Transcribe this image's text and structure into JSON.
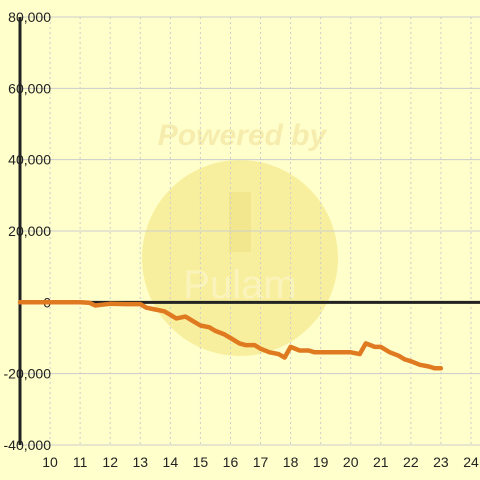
{
  "chart_data": {
    "type": "line",
    "title": "",
    "xlabel": "",
    "ylabel": "",
    "xlim": [
      9,
      24.3
    ],
    "ylim": [
      -40000,
      80000
    ],
    "x_ticks": [
      10,
      11,
      12,
      13,
      14,
      15,
      16,
      17,
      18,
      19,
      20,
      21,
      22,
      23,
      24
    ],
    "y_ticks": [
      {
        "value": 80000,
        "label": "80,000"
      },
      {
        "value": 60000,
        "label": "60,000"
      },
      {
        "value": 40000,
        "label": "40,000"
      },
      {
        "value": 20000,
        "label": "20,000"
      },
      {
        "value": 0,
        "label": "0"
      },
      {
        "value": -20000,
        "label": "-20,000"
      },
      {
        "value": -40000,
        "label": "-40,000"
      }
    ],
    "grid": true,
    "watermark": {
      "line1": "Powered by",
      "line2": "Pulam",
      "color": "#e8d890"
    },
    "colors": {
      "background": "#ffffcc",
      "line": "#e07a20",
      "axis": "#222222",
      "grid": "#cccccc"
    },
    "series": [
      {
        "name": "",
        "x": [
          9.0,
          10.0,
          11.0,
          11.3,
          11.5,
          11.7,
          12.0,
          12.5,
          13.0,
          13.2,
          13.5,
          13.8,
          14.0,
          14.2,
          14.5,
          14.8,
          15.0,
          15.3,
          15.5,
          15.8,
          16.0,
          16.3,
          16.5,
          16.8,
          17.0,
          17.3,
          17.6,
          17.8,
          18.0,
          18.3,
          18.6,
          18.8,
          19.0,
          19.5,
          20.0,
          20.3,
          20.5,
          20.8,
          21.0,
          21.3,
          21.6,
          21.8,
          22.0,
          22.3,
          22.6,
          22.8,
          23.0
        ],
        "values": [
          0,
          0,
          0,
          -100,
          -900,
          -700,
          -400,
          -500,
          -500,
          -1500,
          -2000,
          -2500,
          -3500,
          -4500,
          -4000,
          -5500,
          -6500,
          -7000,
          -8000,
          -9000,
          -10000,
          -11500,
          -12000,
          -12000,
          -13000,
          -14000,
          -14500,
          -15500,
          -12500,
          -13500,
          -13500,
          -14000,
          -14000,
          -14000,
          -14000,
          -14500,
          -11500,
          -12500,
          -12500,
          -14000,
          -15000,
          -16000,
          -16500,
          -17500,
          -18000,
          -18500,
          -18500
        ]
      }
    ]
  }
}
